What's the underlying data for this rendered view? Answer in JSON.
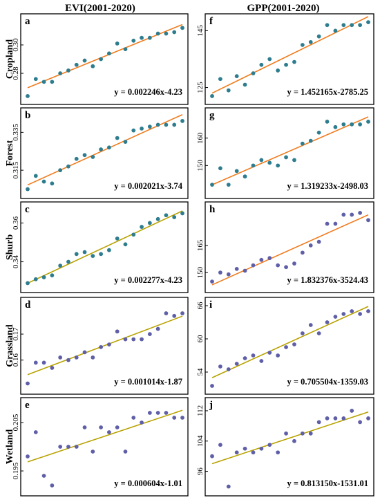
{
  "column_titles": [
    "EVI(2001-2020)",
    "GPP(2001-2020)"
  ],
  "row_labels": [
    "Cropland",
    "Forest",
    "Shurb",
    "Grassland",
    "Wetland"
  ],
  "colors": {
    "orange_line": "#f07c1e",
    "olive_line": "#b8a200",
    "teal_point": "#2e7d8e",
    "violet_point": "#5f5fa8"
  },
  "chart_data": [
    {
      "type": "scatter",
      "label": "a",
      "column": "EVI(2001-2020)",
      "ylabel": "Cropland",
      "x": [
        2001,
        2002,
        2003,
        2004,
        2005,
        2006,
        2007,
        2008,
        2009,
        2010,
        2011,
        2012,
        2013,
        2014,
        2015,
        2016,
        2017,
        2018,
        2019,
        2020
      ],
      "y": [
        0.264,
        0.276,
        0.274,
        0.274,
        0.28,
        0.282,
        0.286,
        0.289,
        0.285,
        0.29,
        0.294,
        0.301,
        0.297,
        0.303,
        0.305,
        0.305,
        0.308,
        0.308,
        0.309,
        0.312
      ],
      "ylim": [
        0.262,
        0.318
      ],
      "yticks": [
        "0.28",
        "0.30"
      ],
      "ytick_values": [
        0.28,
        0.3
      ],
      "line_color": "#f07c1e",
      "point_color": "#2e7d8e",
      "equation": "y = 0.002246x-4.23"
    },
    {
      "type": "scatter",
      "label": "f",
      "column": "GPP(2001-2020)",
      "ylabel": "Cropland",
      "x": [
        2001,
        2002,
        2003,
        2004,
        2005,
        2006,
        2007,
        2008,
        2009,
        2010,
        2011,
        2012,
        2013,
        2014,
        2015,
        2016,
        2017,
        2018,
        2019,
        2020
      ],
      "y": [
        122,
        128,
        124,
        129,
        126,
        130,
        133,
        135,
        131,
        133,
        134,
        140,
        141,
        143,
        147,
        145,
        147,
        147,
        147,
        148
      ],
      "ylim": [
        121,
        149
      ],
      "yticks": [
        "125",
        "145"
      ],
      "ytick_values": [
        125,
        145
      ],
      "line_color": "#f07c1e",
      "point_color": "#2e7d8e",
      "equation": "y = 1.452165x-2785.25"
    },
    {
      "type": "scatter",
      "label": "b",
      "column": "EVI(2001-2020)",
      "ylabel": "Forest",
      "x": [
        2001,
        2002,
        2003,
        2004,
        2005,
        2006,
        2007,
        2008,
        2009,
        2010,
        2011,
        2012,
        2013,
        2014,
        2015,
        2016,
        2017,
        2018,
        2019,
        2020
      ],
      "y": [
        0.305,
        0.312,
        0.309,
        0.308,
        0.315,
        0.317,
        0.321,
        0.323,
        0.322,
        0.326,
        0.327,
        0.332,
        0.33,
        0.336,
        0.337,
        0.338,
        0.339,
        0.339,
        0.339,
        0.341
      ],
      "ylim": [
        0.303,
        0.345
      ],
      "yticks": [
        "0.315",
        "0.335"
      ],
      "ytick_values": [
        0.315,
        0.335
      ],
      "line_color": "#f07c1e",
      "point_color": "#2e7d8e",
      "equation": "y = 0.002021x-3.74"
    },
    {
      "type": "scatter",
      "label": "g",
      "column": "GPP(2001-2020)",
      "ylabel": "Forest",
      "x": [
        2001,
        2002,
        2003,
        2004,
        2005,
        2006,
        2007,
        2008,
        2009,
        2010,
        2011,
        2012,
        2013,
        2014,
        2015,
        2016,
        2017,
        2018,
        2019,
        2020
      ],
      "y": [
        143,
        149,
        143,
        148,
        146,
        150,
        152,
        151,
        150,
        153,
        152,
        158,
        159,
        162,
        166,
        164,
        165,
        165,
        165,
        166
      ],
      "ylim": [
        140,
        169
      ],
      "yticks": [
        "150",
        "160"
      ],
      "ytick_values": [
        150,
        160
      ],
      "line_color": "#f07c1e",
      "point_color": "#2e7d8e",
      "equation": "y = 1.319233x-2498.03"
    },
    {
      "type": "scatter",
      "label": "c",
      "column": "EVI(2001-2020)",
      "ylabel": "Shurb",
      "x": [
        2001,
        2002,
        2003,
        2004,
        2005,
        2006,
        2007,
        2008,
        2009,
        2010,
        2011,
        2012,
        2013,
        2014,
        2015,
        2016,
        2017,
        2018,
        2019,
        2020
      ],
      "y": [
        0.329,
        0.331,
        0.332,
        0.333,
        0.338,
        0.34,
        0.344,
        0.345,
        0.343,
        0.344,
        0.346,
        0.352,
        0.349,
        0.354,
        0.358,
        0.36,
        0.362,
        0.364,
        0.363,
        0.365
      ],
      "ylim": [
        0.327,
        0.368
      ],
      "yticks": [
        "0.34",
        "0.36"
      ],
      "ytick_values": [
        0.34,
        0.36
      ],
      "line_color": "#b8a200",
      "point_color": "#2e7d8e",
      "equation": "y = 0.002277x-4.23"
    },
    {
      "type": "scatter",
      "label": "h",
      "column": "GPP(2001-2020)",
      "ylabel": "Shurb",
      "x": [
        2001,
        2002,
        2003,
        2004,
        2005,
        2006,
        2007,
        2008,
        2009,
        2010,
        2011,
        2012,
        2013,
        2014,
        2015,
        2016,
        2017,
        2018,
        2019,
        2020
      ],
      "y": [
        145,
        150,
        149,
        152,
        151,
        154,
        157,
        158,
        154,
        153,
        155,
        161,
        165,
        167,
        177,
        177,
        182,
        182,
        183,
        179
      ],
      "ylim": [
        142,
        186
      ],
      "yticks": [
        "150",
        "165"
      ],
      "ytick_values": [
        150,
        165
      ],
      "line_color": "#f07c1e",
      "point_color": "#5f5fa8",
      "equation": "y = 1.832376x-3524.43"
    },
    {
      "type": "scatter",
      "label": "d",
      "column": "EVI(2001-2020)",
      "ylabel": "Grassland",
      "x": [
        2001,
        2002,
        2003,
        2004,
        2005,
        2006,
        2007,
        2008,
        2009,
        2010,
        2011,
        2012,
        2013,
        2014,
        2015,
        2016,
        2017,
        2018,
        2019,
        2020
      ],
      "y": [
        0.151,
        0.159,
        0.159,
        0.157,
        0.161,
        0.16,
        0.161,
        0.163,
        0.161,
        0.165,
        0.166,
        0.171,
        0.168,
        0.168,
        0.168,
        0.17,
        0.172,
        0.178,
        0.177,
        0.178
      ],
      "ylim": [
        0.149,
        0.182
      ],
      "yticks": [
        "0.16",
        "0.17"
      ],
      "ytick_values": [
        0.16,
        0.17
      ],
      "line_color": "#b8a200",
      "point_color": "#5f5fa8",
      "equation": "y = 0.001014x-1.87"
    },
    {
      "type": "scatter",
      "label": "i",
      "column": "GPP(2001-2020)",
      "ylabel": "Grassland",
      "x": [
        2001,
        2002,
        2003,
        2004,
        2005,
        2006,
        2007,
        2008,
        2009,
        2010,
        2011,
        2012,
        2013,
        2014,
        2015,
        2016,
        2017,
        2018,
        2019,
        2020
      ],
      "y": [
        51.5,
        55.0,
        54.5,
        55.5,
        56.5,
        57.0,
        56.0,
        57.5,
        57.0,
        58.5,
        59.0,
        61.0,
        62.5,
        61.0,
        63.0,
        64.0,
        64.5,
        65.0,
        64.5,
        65.0
      ],
      "ylim": [
        51,
        66.5
      ],
      "yticks": [
        "54",
        "60",
        "66"
      ],
      "ytick_values": [
        54,
        60,
        66
      ],
      "line_color": "#b8a200",
      "point_color": "#5f5fa8",
      "equation": "y = 0.705504x-1359.03"
    },
    {
      "type": "scatter",
      "label": "e",
      "column": "EVI(2001-2020)",
      "ylabel": "Wetland",
      "x": [
        2001,
        2002,
        2003,
        2004,
        2005,
        2006,
        2007,
        2008,
        2009,
        2010,
        2011,
        2012,
        2013,
        2014,
        2015,
        2016,
        2017,
        2018,
        2019,
        2020
      ],
      "y": [
        0.198,
        0.203,
        0.194,
        0.192,
        0.2,
        0.2,
        0.2,
        0.204,
        0.199,
        0.204,
        0.203,
        0.204,
        0.199,
        0.206,
        0.205,
        0.207,
        0.207,
        0.207,
        0.206,
        0.206
      ],
      "ylim": [
        0.191,
        0.209
      ],
      "yticks": [
        "0.195",
        "0.205"
      ],
      "ytick_values": [
        0.195,
        0.205
      ],
      "line_color": "#b8a200",
      "point_color": "#5f5fa8",
      "equation": "y = 0.000604x-1.01"
    },
    {
      "type": "scatter",
      "label": "j",
      "column": "GPP(2001-2020)",
      "ylabel": "Wetland",
      "x": [
        2001,
        2002,
        2003,
        2004,
        2005,
        2006,
        2007,
        2008,
        2009,
        2010,
        2011,
        2012,
        2013,
        2014,
        2015,
        2016,
        2017,
        2018,
        2019,
        2020
      ],
      "y": [
        100,
        103,
        92,
        101,
        102,
        101,
        102,
        103,
        101,
        106,
        104,
        106,
        106,
        109,
        110,
        110,
        110,
        112,
        109,
        110
      ],
      "ylim": [
        91,
        114
      ],
      "yticks": [
        "96",
        "104",
        "112"
      ],
      "ytick_values": [
        96,
        104,
        112
      ],
      "line_color": "#b8a200",
      "point_color": "#5f5fa8",
      "equation": "y = 0.813150x-1531.01"
    }
  ]
}
